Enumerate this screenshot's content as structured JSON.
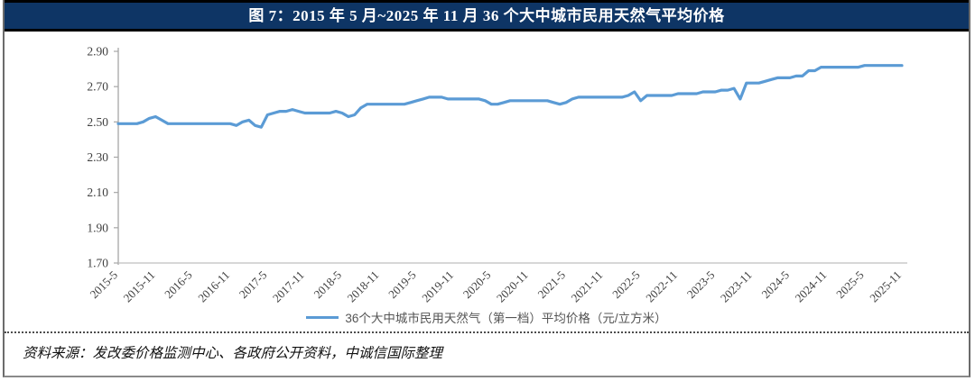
{
  "title": "图 7：2015 年 5 月~2025 年 11 月 36 个大中城市民用天然气平均价格",
  "source": "资料来源：发改委价格监测中心、各政府公开资料，中诚信国际整理",
  "legend": "36个大中城市民用天然气（第一档）平均价格（元/立方米）",
  "colors": {
    "title_bar_bg": "#0e3565",
    "title_text": "#ffffff",
    "line": "#5B9BD5",
    "y_axis": "#a6a6a6",
    "x_axis": "#bfbfbf",
    "tick_text": "#404040"
  },
  "chart_data": {
    "type": "line",
    "title": "图 7：2015 年 5 月~2025 年 11 月 36 个大中城市民用天然气平均价格",
    "xlabel": "",
    "ylabel": "",
    "ylim": [
      1.7,
      2.9
    ],
    "yticks": [
      1.7,
      1.9,
      2.1,
      2.3,
      2.5,
      2.7,
      2.9
    ],
    "grid": false,
    "legend_position": "bottom",
    "x_tick_labels": [
      "2015-5",
      "2015-11",
      "2016-5",
      "2016-11",
      "2017-5",
      "2017-11",
      "2018-5",
      "2018-11",
      "2019-5",
      "2019-11",
      "2020-5",
      "2020-11",
      "2021-5",
      "2021-11",
      "2022-5",
      "2022-11",
      "2023-5",
      "2023-11",
      "2024-5",
      "2024-11",
      "2025-5",
      "2025-11"
    ],
    "x_tick_every": 6,
    "series": [
      {
        "name": "36个大中城市民用天然气（第一档）平均价格（元/立方米）",
        "color": "#5B9BD5",
        "start_month": "2015-05",
        "frequency": "monthly",
        "values": [
          2.49,
          2.49,
          2.49,
          2.49,
          2.5,
          2.52,
          2.53,
          2.51,
          2.49,
          2.49,
          2.49,
          2.49,
          2.49,
          2.49,
          2.49,
          2.49,
          2.49,
          2.49,
          2.49,
          2.48,
          2.5,
          2.51,
          2.48,
          2.47,
          2.54,
          2.55,
          2.56,
          2.56,
          2.57,
          2.56,
          2.55,
          2.55,
          2.55,
          2.55,
          2.55,
          2.56,
          2.55,
          2.53,
          2.54,
          2.58,
          2.6,
          2.6,
          2.6,
          2.6,
          2.6,
          2.6,
          2.6,
          2.61,
          2.62,
          2.63,
          2.64,
          2.64,
          2.64,
          2.63,
          2.63,
          2.63,
          2.63,
          2.63,
          2.63,
          2.62,
          2.6,
          2.6,
          2.61,
          2.62,
          2.62,
          2.62,
          2.62,
          2.62,
          2.62,
          2.62,
          2.61,
          2.6,
          2.61,
          2.63,
          2.64,
          2.64,
          2.64,
          2.64,
          2.64,
          2.64,
          2.64,
          2.64,
          2.65,
          2.67,
          2.62,
          2.65,
          2.65,
          2.65,
          2.65,
          2.65,
          2.66,
          2.66,
          2.66,
          2.66,
          2.67,
          2.67,
          2.67,
          2.68,
          2.68,
          2.69,
          2.63,
          2.72,
          2.72,
          2.72,
          2.73,
          2.74,
          2.75,
          2.75,
          2.75,
          2.76,
          2.76,
          2.79,
          2.79,
          2.81,
          2.81,
          2.81,
          2.81,
          2.81,
          2.81,
          2.81,
          2.82,
          2.82,
          2.82,
          2.82,
          2.82,
          2.82,
          2.82
        ]
      }
    ]
  }
}
